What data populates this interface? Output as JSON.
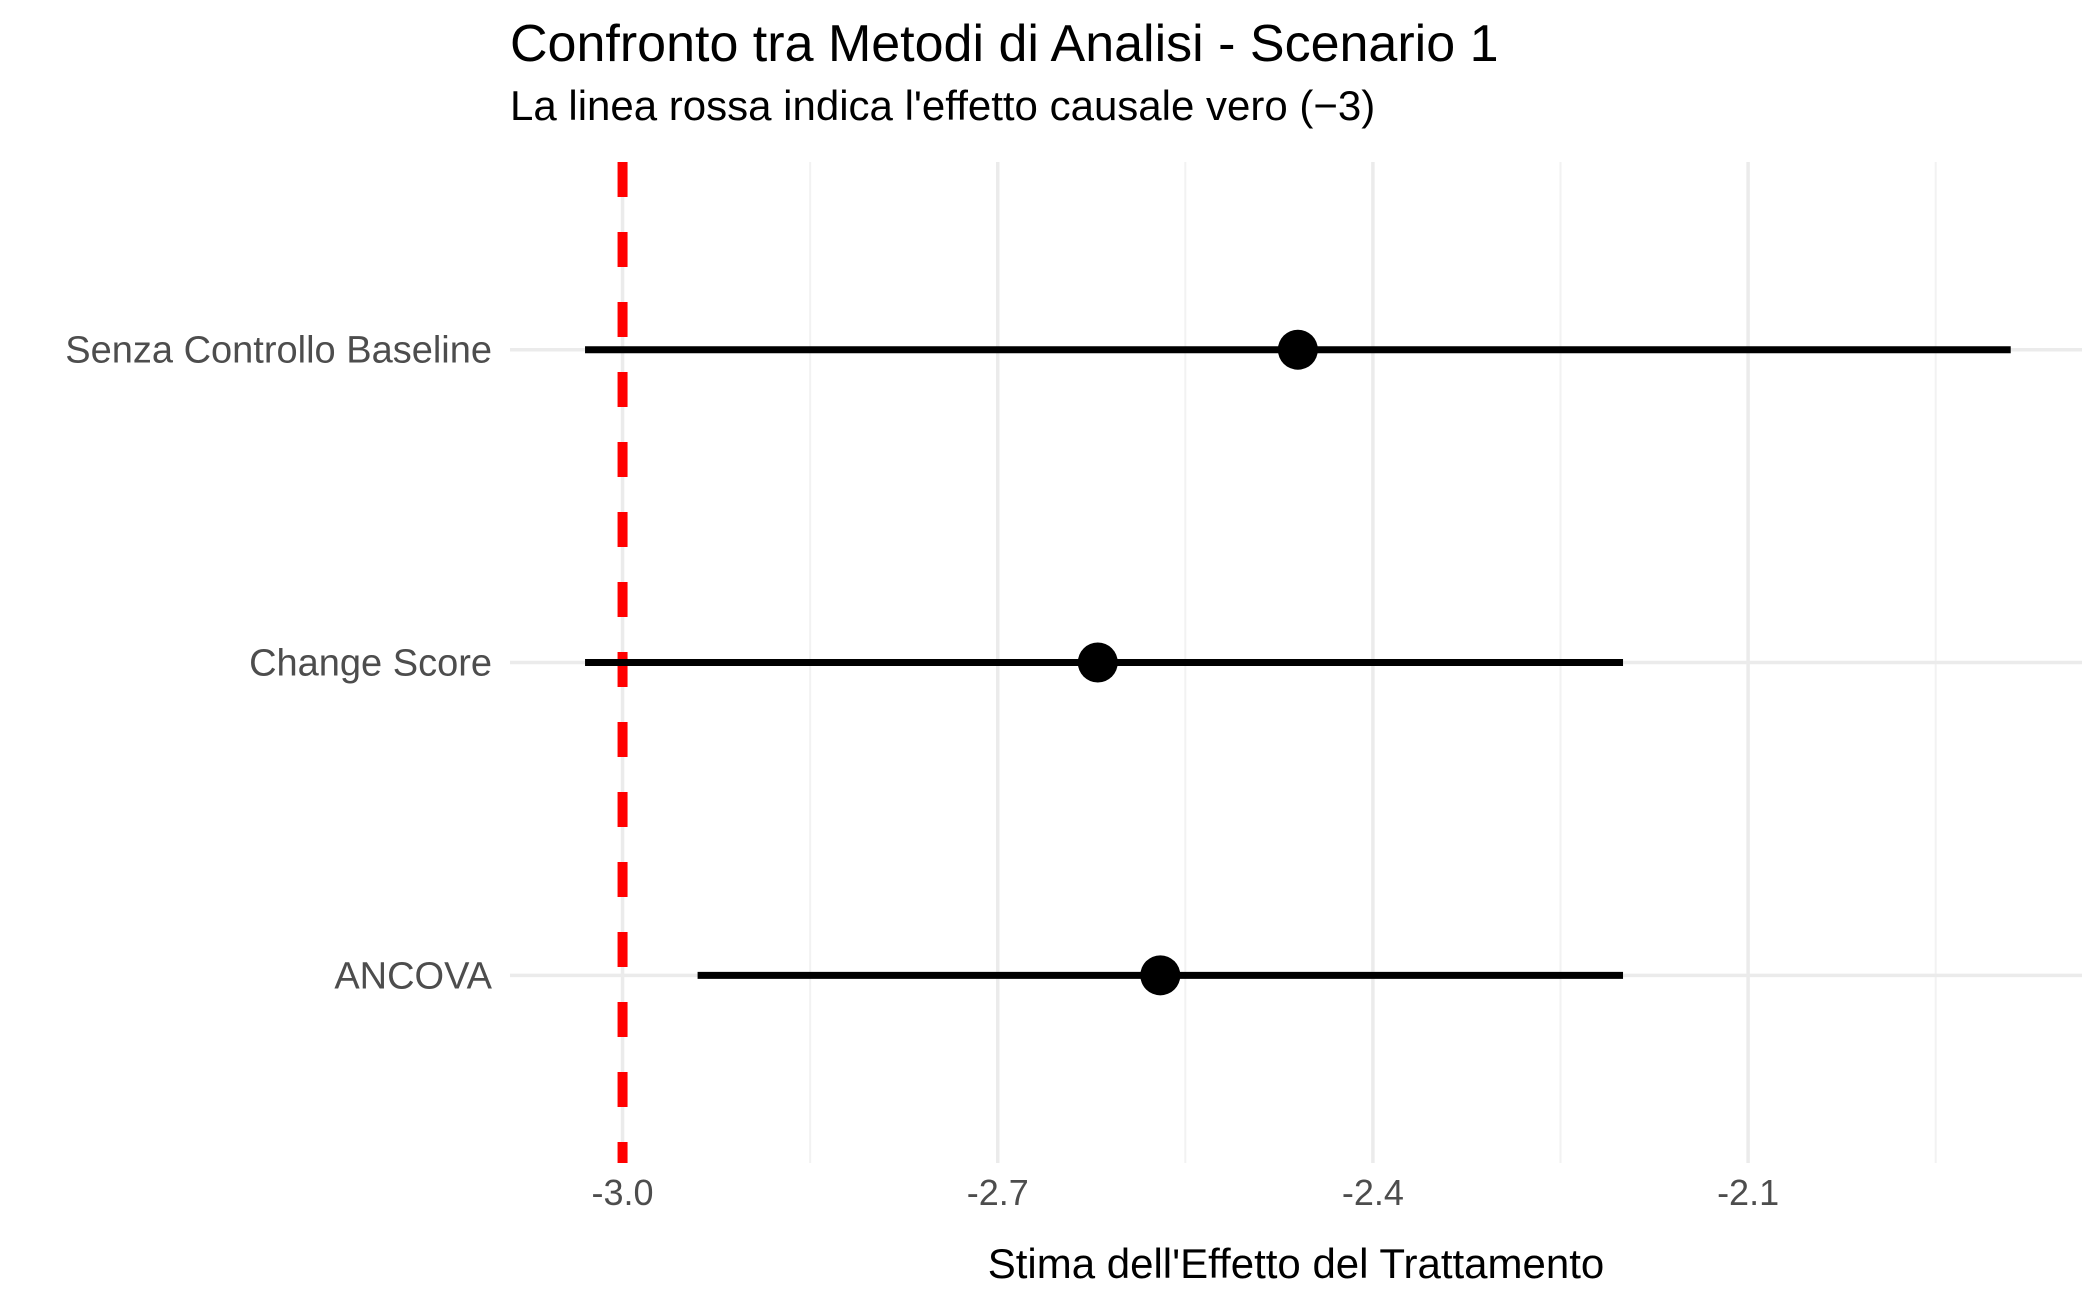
{
  "chart_data": {
    "type": "pointrange",
    "title": "Confronto tra Metodi di Analisi - Scenario 1",
    "subtitle": "La linea rossa indica l'effetto causale vero (−3)",
    "xlabel": "Stima dell'Effetto del Trattamento",
    "ylabel": "",
    "categories": [
      "Senza Controllo Baseline",
      "Change Score",
      "ANCOVA"
    ],
    "series": [
      {
        "name": "Senza Controllo Baseline",
        "estimate": -2.46,
        "ci_low": -3.03,
        "ci_high": -1.89
      },
      {
        "name": "Change Score",
        "estimate": -2.62,
        "ci_low": -3.03,
        "ci_high": -2.2
      },
      {
        "name": "ANCOVA",
        "estimate": -2.57,
        "ci_low": -2.94,
        "ci_high": -2.2
      }
    ],
    "reference_line": {
      "x": -3,
      "style": "dashed",
      "meaning": "effetto causale vero"
    },
    "x_ticks": [
      -3.0,
      -2.7,
      -2.4,
      -2.1
    ],
    "x_tick_labels": [
      "-3.0",
      "-2.7",
      "-2.4",
      "-2.1"
    ],
    "x_minor_ticks": [
      -2.85,
      -2.55,
      -2.25,
      -1.95
    ],
    "xlim": [
      -3.09,
      -1.833
    ],
    "grid": true,
    "legend_position": "none",
    "colors": {
      "background": "#FFFFFF",
      "point": "#000000",
      "ci_line": "#000000",
      "reference": "#FF0000",
      "grid_major": "#EBEBEB",
      "grid_minor": "#F2F2F2",
      "axis_text": "#4D4D4D",
      "title_text": "#000000"
    }
  }
}
